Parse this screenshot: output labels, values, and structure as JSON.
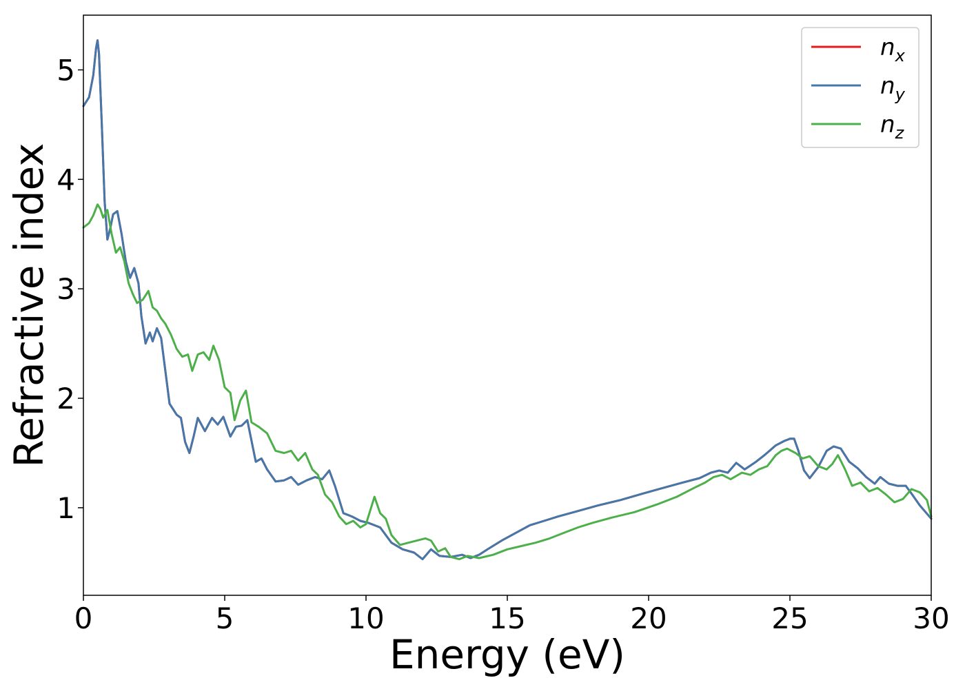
{
  "chart_data": {
    "type": "line",
    "xlabel": "Energy (eV)",
    "ylabel": "Refractive index",
    "xlim": [
      0,
      30
    ],
    "ylim": [
      0.2,
      5.5
    ],
    "xticks": [
      0,
      5,
      10,
      15,
      20,
      25,
      30
    ],
    "xtick_labels": [
      "0",
      "5",
      "10",
      "15",
      "20",
      "25",
      "30"
    ],
    "yticks": [
      1,
      2,
      3,
      4,
      5
    ],
    "ytick_labels": [
      "1",
      "2",
      "3",
      "4",
      "5"
    ],
    "grid": false,
    "legend_position": "top-right",
    "series": [
      {
        "name": "n_x",
        "legend_base": "n",
        "legend_sub": "x",
        "color": "#e41a1c",
        "x": [
          0,
          0.2,
          0.35,
          0.45,
          0.5,
          0.55,
          0.65,
          0.75,
          0.85,
          0.95,
          1.05,
          1.2,
          1.35,
          1.5,
          1.65,
          1.8,
          1.95,
          2.05,
          2.2,
          2.35,
          2.45,
          2.6,
          2.75,
          2.9,
          3.05,
          3.3,
          3.45,
          3.6,
          3.75,
          3.9,
          4.05,
          4.3,
          4.55,
          4.75,
          4.95,
          5.2,
          5.4,
          5.6,
          5.8,
          6.1,
          6.3,
          6.5,
          6.8,
          7.1,
          7.35,
          7.6,
          7.9,
          8.2,
          8.45,
          8.7,
          8.9,
          9.2,
          9.5,
          9.8,
          10.1,
          10.5,
          10.9,
          11.3,
          11.7,
          12.0,
          12.3,
          12.6,
          13.0,
          13.4,
          13.7,
          14.0,
          14.3,
          14.8,
          15.3,
          15.8,
          16.3,
          16.8,
          17.5,
          18.2,
          19.0,
          19.8,
          20.5,
          21.2,
          21.8,
          22.2,
          22.5,
          22.8,
          23.1,
          23.4,
          23.8,
          24.1,
          24.5,
          24.8,
          25.0,
          25.15,
          25.3,
          25.5,
          25.7,
          26.0,
          26.3,
          26.55,
          26.8,
          27.1,
          27.4,
          27.7,
          28.0,
          28.2,
          28.5,
          28.8,
          29.1,
          29.3,
          29.6,
          30.0
        ],
        "y": [
          4.67,
          4.75,
          4.95,
          5.2,
          5.27,
          5.15,
          4.5,
          3.8,
          3.45,
          3.55,
          3.68,
          3.71,
          3.5,
          3.25,
          3.1,
          3.19,
          3.05,
          2.75,
          2.5,
          2.6,
          2.52,
          2.64,
          2.55,
          2.25,
          1.95,
          1.85,
          1.82,
          1.6,
          1.5,
          1.65,
          1.82,
          1.7,
          1.82,
          1.76,
          1.83,
          1.65,
          1.74,
          1.75,
          1.8,
          1.42,
          1.45,
          1.35,
          1.24,
          1.25,
          1.28,
          1.21,
          1.25,
          1.28,
          1.26,
          1.34,
          1.2,
          0.95,
          0.92,
          0.88,
          0.86,
          0.82,
          0.68,
          0.62,
          0.59,
          0.53,
          0.62,
          0.56,
          0.55,
          0.57,
          0.54,
          0.57,
          0.62,
          0.7,
          0.77,
          0.84,
          0.88,
          0.92,
          0.97,
          1.02,
          1.07,
          1.13,
          1.18,
          1.23,
          1.27,
          1.32,
          1.34,
          1.32,
          1.41,
          1.35,
          1.42,
          1.48,
          1.57,
          1.61,
          1.63,
          1.63,
          1.52,
          1.34,
          1.27,
          1.37,
          1.52,
          1.56,
          1.54,
          1.42,
          1.36,
          1.28,
          1.22,
          1.28,
          1.22,
          1.2,
          1.2,
          1.13,
          1.02,
          0.9
        ]
      },
      {
        "name": "n_y",
        "legend_base": "n",
        "legend_sub": "y",
        "color": "#4477aa",
        "x": [
          0,
          0.2,
          0.35,
          0.45,
          0.5,
          0.55,
          0.65,
          0.75,
          0.85,
          0.95,
          1.05,
          1.2,
          1.35,
          1.5,
          1.65,
          1.8,
          1.95,
          2.05,
          2.2,
          2.35,
          2.45,
          2.6,
          2.75,
          2.9,
          3.05,
          3.3,
          3.45,
          3.6,
          3.75,
          3.9,
          4.05,
          4.3,
          4.55,
          4.75,
          4.95,
          5.2,
          5.4,
          5.6,
          5.8,
          6.1,
          6.3,
          6.5,
          6.8,
          7.1,
          7.35,
          7.6,
          7.9,
          8.2,
          8.45,
          8.7,
          8.9,
          9.2,
          9.5,
          9.8,
          10.1,
          10.5,
          10.9,
          11.3,
          11.7,
          12.0,
          12.3,
          12.6,
          13.0,
          13.4,
          13.7,
          14.0,
          14.3,
          14.8,
          15.3,
          15.8,
          16.3,
          16.8,
          17.5,
          18.2,
          19.0,
          19.8,
          20.5,
          21.2,
          21.8,
          22.2,
          22.5,
          22.8,
          23.1,
          23.4,
          23.8,
          24.1,
          24.5,
          24.8,
          25.0,
          25.15,
          25.3,
          25.5,
          25.7,
          26.0,
          26.3,
          26.55,
          26.8,
          27.1,
          27.4,
          27.7,
          28.0,
          28.2,
          28.5,
          28.8,
          29.1,
          29.3,
          29.6,
          30.0
        ],
        "y": [
          4.67,
          4.75,
          4.95,
          5.2,
          5.27,
          5.15,
          4.5,
          3.8,
          3.45,
          3.55,
          3.68,
          3.71,
          3.5,
          3.25,
          3.1,
          3.19,
          3.05,
          2.75,
          2.5,
          2.6,
          2.52,
          2.64,
          2.55,
          2.25,
          1.95,
          1.85,
          1.82,
          1.6,
          1.5,
          1.65,
          1.82,
          1.7,
          1.82,
          1.76,
          1.83,
          1.65,
          1.74,
          1.75,
          1.8,
          1.42,
          1.45,
          1.35,
          1.24,
          1.25,
          1.28,
          1.21,
          1.25,
          1.28,
          1.26,
          1.34,
          1.2,
          0.95,
          0.92,
          0.88,
          0.86,
          0.82,
          0.68,
          0.62,
          0.59,
          0.53,
          0.62,
          0.56,
          0.55,
          0.57,
          0.54,
          0.57,
          0.62,
          0.7,
          0.77,
          0.84,
          0.88,
          0.92,
          0.97,
          1.02,
          1.07,
          1.13,
          1.18,
          1.23,
          1.27,
          1.32,
          1.34,
          1.32,
          1.41,
          1.35,
          1.42,
          1.48,
          1.57,
          1.61,
          1.63,
          1.63,
          1.52,
          1.34,
          1.27,
          1.37,
          1.52,
          1.56,
          1.54,
          1.42,
          1.36,
          1.28,
          1.22,
          1.28,
          1.22,
          1.2,
          1.2,
          1.13,
          1.02,
          0.9
        ]
      },
      {
        "name": "n_z",
        "legend_base": "n",
        "legend_sub": "z",
        "color": "#4daf4a",
        "x": [
          0,
          0.2,
          0.35,
          0.5,
          0.6,
          0.7,
          0.85,
          1.0,
          1.15,
          1.3,
          1.45,
          1.6,
          1.75,
          1.9,
          2.1,
          2.3,
          2.45,
          2.6,
          2.75,
          2.9,
          3.1,
          3.3,
          3.5,
          3.7,
          3.85,
          4.05,
          4.25,
          4.45,
          4.6,
          4.8,
          5.0,
          5.2,
          5.35,
          5.55,
          5.75,
          5.95,
          6.2,
          6.5,
          6.8,
          7.1,
          7.35,
          7.6,
          7.85,
          8.1,
          8.3,
          8.55,
          8.8,
          9.05,
          9.3,
          9.55,
          9.8,
          10.0,
          10.3,
          10.5,
          10.7,
          10.9,
          11.2,
          11.5,
          11.8,
          12.1,
          12.3,
          12.55,
          12.8,
          13.0,
          13.3,
          13.6,
          14.0,
          14.5,
          15.0,
          15.5,
          16.0,
          16.5,
          17.0,
          17.5,
          18.0,
          18.7,
          19.5,
          20.3,
          21.0,
          21.6,
          22.0,
          22.3,
          22.6,
          22.9,
          23.3,
          23.6,
          23.9,
          24.2,
          24.5,
          24.7,
          24.9,
          25.2,
          25.45,
          25.7,
          26.0,
          26.3,
          26.5,
          26.7,
          26.95,
          27.2,
          27.5,
          27.8,
          28.1,
          28.4,
          28.7,
          29.0,
          29.3,
          29.6,
          29.85,
          30.0
        ],
        "y": [
          3.56,
          3.6,
          3.67,
          3.77,
          3.73,
          3.65,
          3.72,
          3.5,
          3.33,
          3.38,
          3.25,
          3.05,
          2.95,
          2.87,
          2.9,
          2.98,
          2.83,
          2.8,
          2.73,
          2.68,
          2.58,
          2.45,
          2.38,
          2.4,
          2.25,
          2.4,
          2.42,
          2.35,
          2.48,
          2.35,
          2.1,
          2.05,
          1.8,
          1.98,
          2.07,
          1.78,
          1.74,
          1.68,
          1.52,
          1.5,
          1.52,
          1.43,
          1.5,
          1.35,
          1.3,
          1.12,
          1.05,
          0.92,
          0.85,
          0.88,
          0.82,
          0.85,
          1.1,
          0.95,
          0.9,
          0.75,
          0.66,
          0.68,
          0.7,
          0.72,
          0.7,
          0.6,
          0.63,
          0.55,
          0.53,
          0.56,
          0.54,
          0.57,
          0.62,
          0.65,
          0.68,
          0.72,
          0.77,
          0.82,
          0.86,
          0.91,
          0.96,
          1.03,
          1.1,
          1.18,
          1.23,
          1.28,
          1.3,
          1.26,
          1.32,
          1.3,
          1.35,
          1.38,
          1.48,
          1.52,
          1.54,
          1.5,
          1.45,
          1.47,
          1.38,
          1.35,
          1.4,
          1.48,
          1.35,
          1.2,
          1.23,
          1.15,
          1.18,
          1.12,
          1.05,
          1.08,
          1.17,
          1.14,
          1.07,
          0.92
        ]
      }
    ]
  }
}
